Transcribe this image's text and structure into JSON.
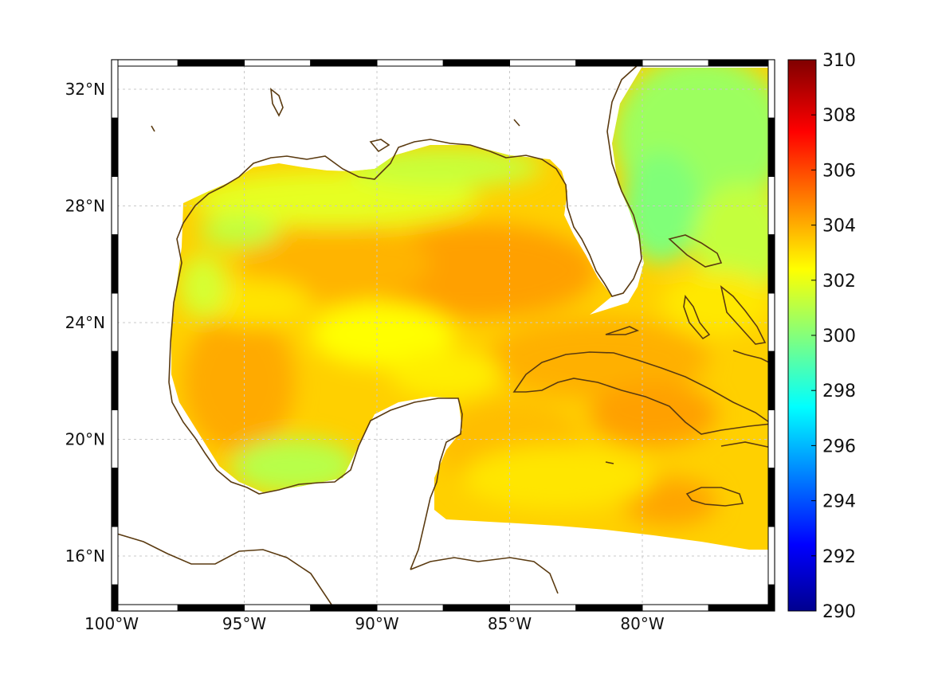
{
  "map": {
    "lon_range": [
      -100,
      -75
    ],
    "lat_range": [
      14.2,
      33
    ],
    "x_ticks": [
      {
        "lon": -100,
        "label": "100°W"
      },
      {
        "lon": -95,
        "label": "95°W"
      },
      {
        "lon": -90,
        "label": "90°W"
      },
      {
        "lon": -85,
        "label": "85°W"
      },
      {
        "lon": -80,
        "label": "80°W"
      }
    ],
    "y_ticks": [
      {
        "lat": 16,
        "label": "16°N"
      },
      {
        "lat": 20,
        "label": "20°N"
      },
      {
        "lat": 24,
        "label": "24°N"
      },
      {
        "lat": 28,
        "label": "28°N"
      },
      {
        "lat": 32,
        "label": "32°N"
      }
    ],
    "grid": true,
    "frame": "alternating black/white border",
    "coastline_color": "#5a3a10"
  },
  "colorbar": {
    "colormap": "jet",
    "range": [
      290,
      310
    ],
    "ticks": [
      "310",
      "308",
      "306",
      "304",
      "302",
      "300",
      "298",
      "296",
      "294",
      "292",
      "290"
    ],
    "tick_values": [
      310,
      308,
      306,
      304,
      302,
      300,
      298,
      296,
      294,
      292,
      290
    ]
  },
  "colors": {
    "warm_core": "#ffa800",
    "mid": "#ffd400",
    "yellow": "#ffff00",
    "cool_green": "#b6ff4a",
    "coastal_cyan": "#5fffb0"
  }
}
